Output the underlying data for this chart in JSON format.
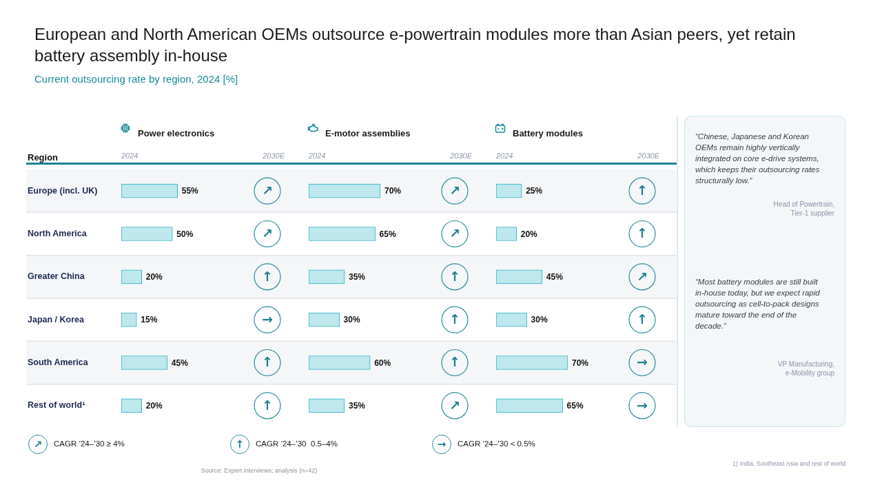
{
  "chart_data": [
    {
      "type": "other",
      "title": "European and North American OEMs outsource e-powertrain modules more than Asian peers, yet retain battery assembly in-house",
      "subtitle": "Current outsourcing rate by region, 2024 [%]"
    },
    {
      "type": "bar",
      "orientation": "horizontal",
      "title": "Power electronics",
      "ylabel": "Region",
      "categories": [
        "Europe (incl. UK)",
        "North America",
        "Greater China",
        "Japan / Korea",
        "South America",
        "Rest of world¹"
      ],
      "values": [
        55,
        50,
        20,
        15,
        45,
        20
      ],
      "value_labels": [
        "55%",
        "50%",
        "20%",
        "15%",
        "45%",
        "20%"
      ],
      "color": "#bee7ee",
      "tick_labels": "y",
      "annotations": [
        "2024",
        "2030E",
        "↗",
        "↗",
        "↑",
        "→",
        "↑",
        "↑"
      ]
    },
    {
      "type": "bar",
      "orientation": "horizontal",
      "title": "E-motor assemblies",
      "categories": [
        null,
        null,
        null,
        null,
        null,
        null
      ],
      "values": [
        70,
        65,
        35,
        30,
        60,
        35
      ],
      "value_labels": [
        "70%",
        "65%",
        "35%",
        "30%",
        "60%",
        "35%"
      ],
      "color": "#bee7ee",
      "tick_labels": false,
      "annotations": [
        "2024",
        "2030E",
        "↗",
        "↗",
        "↑",
        "↑",
        "↑",
        "↗"
      ]
    },
    {
      "type": "bar",
      "orientation": "horizontal",
      "title": "Battery modules",
      "categories": [
        null,
        null,
        null,
        null,
        null,
        null
      ],
      "values": [
        25,
        20,
        45,
        30,
        70,
        65
      ],
      "value_labels": [
        "25%",
        "20%",
        "45%",
        "30%",
        "70%",
        "65%"
      ],
      "color": "#bee7ee",
      "tick_labels": false,
      "annotations": [
        "2024",
        "2030E",
        "↑",
        "↑",
        "↗",
        "↑",
        "→",
        "→"
      ]
    },
    {
      "type": "other",
      "annotations": [
        "“Chinese, Japanese and Korean OEMs remain highly vertically integrated on core e-drive systems, which keeps their outsourcing rates structurally low.”",
        "Head of Powertrain, Tier-1 supplier",
        "“Most battery modules are still built in-house today, but we expect rapid outsourcing as cell-to-pack designs mature toward the end of the decade.”",
        "VP Manufacturing, e-Mobility group"
      ]
    },
    {
      "type": "other",
      "annotations": [
        "↗",
        "CAGR ’24–’30 ≥ 4%",
        "↑",
        "CAGR ’24–’30  0.5–4%",
        "→",
        "CAGR ’24–’30 < 0.5%",
        "Source: Expert interviews; analysis (n=42)",
        "1) India, Southeast Asia and rest of world"
      ]
    }
  ]
}
